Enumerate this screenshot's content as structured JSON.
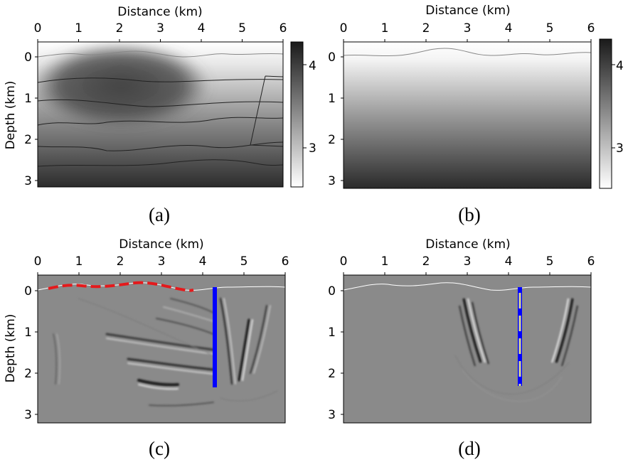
{
  "figure": {
    "panels": [
      {
        "id": "a",
        "caption": "(a)",
        "xlabel": "Distance (km)",
        "ylabel": "Depth (km)",
        "xticks": [
          "0",
          "1",
          "2",
          "3",
          "4",
          "5",
          "6"
        ],
        "yticks": [
          "0",
          "1",
          "2",
          "3"
        ],
        "colorbar": {
          "ticks": [
            "4",
            "3"
          ]
        }
      },
      {
        "id": "b",
        "caption": "(b)",
        "xlabel": "Distance (km)",
        "ylabel": "",
        "xticks": [
          "0",
          "1",
          "2",
          "3",
          "4",
          "5",
          "6"
        ],
        "yticks": [
          "0",
          "1",
          "2",
          "3"
        ],
        "colorbar": {
          "ticks": [
            "4",
            "3"
          ]
        }
      },
      {
        "id": "c",
        "caption": "(c)",
        "xlabel": "Distance (km)",
        "ylabel": "Depth (km)",
        "xticks": [
          "0",
          "1",
          "2",
          "3",
          "4",
          "5",
          "6"
        ],
        "yticks": [
          "0",
          "1",
          "2",
          "3"
        ]
      },
      {
        "id": "d",
        "caption": "(d)",
        "xlabel": "Distance (km)",
        "ylabel": "",
        "xticks": [
          "0",
          "1",
          "2",
          "3",
          "4",
          "5",
          "6"
        ],
        "yticks": [
          "0",
          "1",
          "2",
          "3"
        ]
      }
    ],
    "colors": {
      "sources": "#e41a1c",
      "receivers": "#0000ff",
      "receivers_dash": "#d9d98c",
      "image_background": "#8a8a8a"
    }
  }
}
